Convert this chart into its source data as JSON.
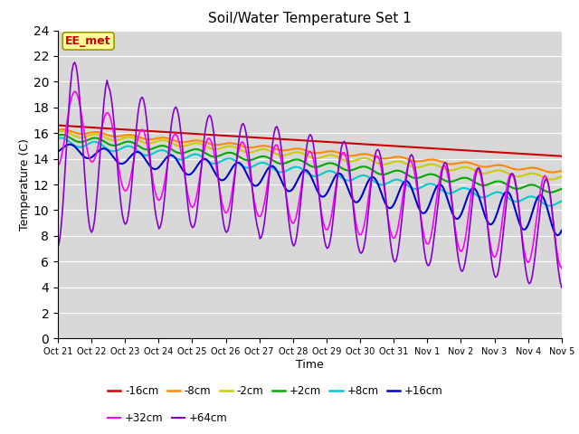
{
  "title": "Soil/Water Temperature Set 1",
  "xlabel": "Time",
  "ylabel": "Temperature (C)",
  "ylim": [
    0,
    24
  ],
  "yticks": [
    0,
    2,
    4,
    6,
    8,
    10,
    12,
    14,
    16,
    18,
    20,
    22,
    24
  ],
  "xlim": [
    0,
    15
  ],
  "xtick_labels": [
    "Oct 21",
    "Oct 22",
    "Oct 23",
    "Oct 24",
    "Oct 25",
    "Oct 26",
    "Oct 27",
    "Oct 28",
    "Oct 29",
    "Oct 30",
    "Oct 31",
    "Nov 1",
    "Nov 2",
    "Nov 3",
    "Nov 4",
    "Nov 5"
  ],
  "bg_color": "#d8d8d8",
  "fig_bg_color": "#ffffff",
  "grid_color": "#ffffff",
  "series": [
    {
      "label": "-16cm",
      "color": "#cc0000",
      "lw": 1.5
    },
    {
      "label": "-8cm",
      "color": "#ff8800",
      "lw": 1.5
    },
    {
      "label": "-2cm",
      "color": "#cccc00",
      "lw": 1.5
    },
    {
      "label": "+2cm",
      "color": "#00aa00",
      "lw": 1.5
    },
    {
      "label": "+8cm",
      "color": "#00cccc",
      "lw": 1.5
    },
    {
      "label": "+16cm",
      "color": "#0000cc",
      "lw": 1.5
    },
    {
      "label": "+32cm",
      "color": "#ff00ff",
      "lw": 1.2
    },
    {
      "label": "+64cm",
      "color": "#8800cc",
      "lw": 1.2
    }
  ],
  "annotation_text": "EE_met",
  "annotation_color": "#cc0000",
  "annotation_bg": "#ffff99",
  "annotation_border": "#999900",
  "legend_ncol1": 6,
  "legend_ncol2": 2
}
